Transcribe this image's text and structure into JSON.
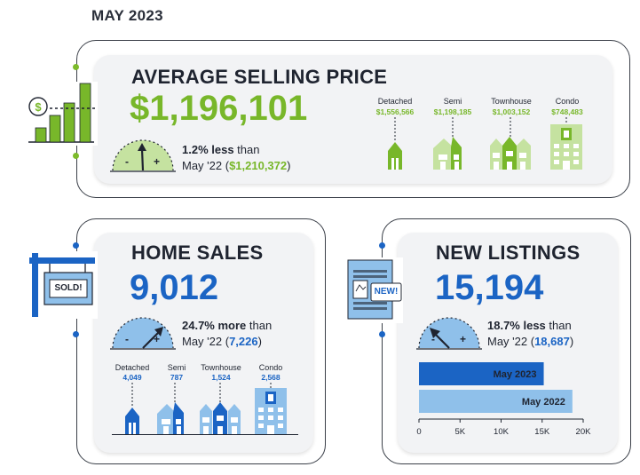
{
  "page_title": "MAY 2023",
  "colors": {
    "green": "#78b72a",
    "light_green": "#c5e2a0",
    "blue": "#1b64c4",
    "light_blue": "#8fc0ea",
    "navy": "#1f2430"
  },
  "average_price": {
    "title": "AVERAGE SELLING PRICE",
    "value": "$1,196,101",
    "change_pct": "1.2% less",
    "change_suffix": " than",
    "compare_prefix": "May '22 (",
    "compare_value": "$1,210,372",
    "compare_suffix": ")",
    "gauge_minus": "-",
    "gauge_plus": "+",
    "icon": "bar-chart-dollar-icon",
    "types": [
      {
        "label": "Detached",
        "value": "$1,556,566"
      },
      {
        "label": "Semi",
        "value": "$1,198,185"
      },
      {
        "label": "Townhouse",
        "value": "$1,003,152"
      },
      {
        "label": "Condo",
        "value": "$748,483"
      }
    ]
  },
  "home_sales": {
    "title": "HOME SALES",
    "value": "9,012",
    "change_pct": "24.7% more",
    "change_suffix": " than",
    "compare_prefix": "May '22 (",
    "compare_value": "7,226",
    "compare_suffix": ")",
    "gauge_minus": "-",
    "gauge_plus": "+",
    "sign_text": "SOLD!",
    "icon": "sold-sign-icon",
    "types": [
      {
        "label": "Detached",
        "value": "4,049"
      },
      {
        "label": "Semi",
        "value": "787"
      },
      {
        "label": "Townhouse",
        "value": "1,524"
      },
      {
        "label": "Condo",
        "value": "2,568"
      }
    ]
  },
  "new_listings": {
    "title": "NEW LISTINGS",
    "value": "15,194",
    "change_pct": "18.7% less",
    "change_suffix": " than",
    "compare_prefix": "May '22 (",
    "compare_value": "18,687",
    "compare_suffix": ")",
    "gauge_minus": "-",
    "gauge_plus": "+",
    "new_badge": "NEW!",
    "icon": "new-listing-document-icon",
    "chart_data": {
      "type": "bar",
      "orientation": "horizontal",
      "categories": [
        "May 2023",
        "May 2022"
      ],
      "values": [
        15194,
        18687
      ],
      "xlim": [
        0,
        20000
      ],
      "xticks": [
        "0",
        "5K",
        "10K",
        "15K",
        "20K"
      ],
      "colors": [
        "#1b64c4",
        "#8fc0ea"
      ]
    }
  }
}
